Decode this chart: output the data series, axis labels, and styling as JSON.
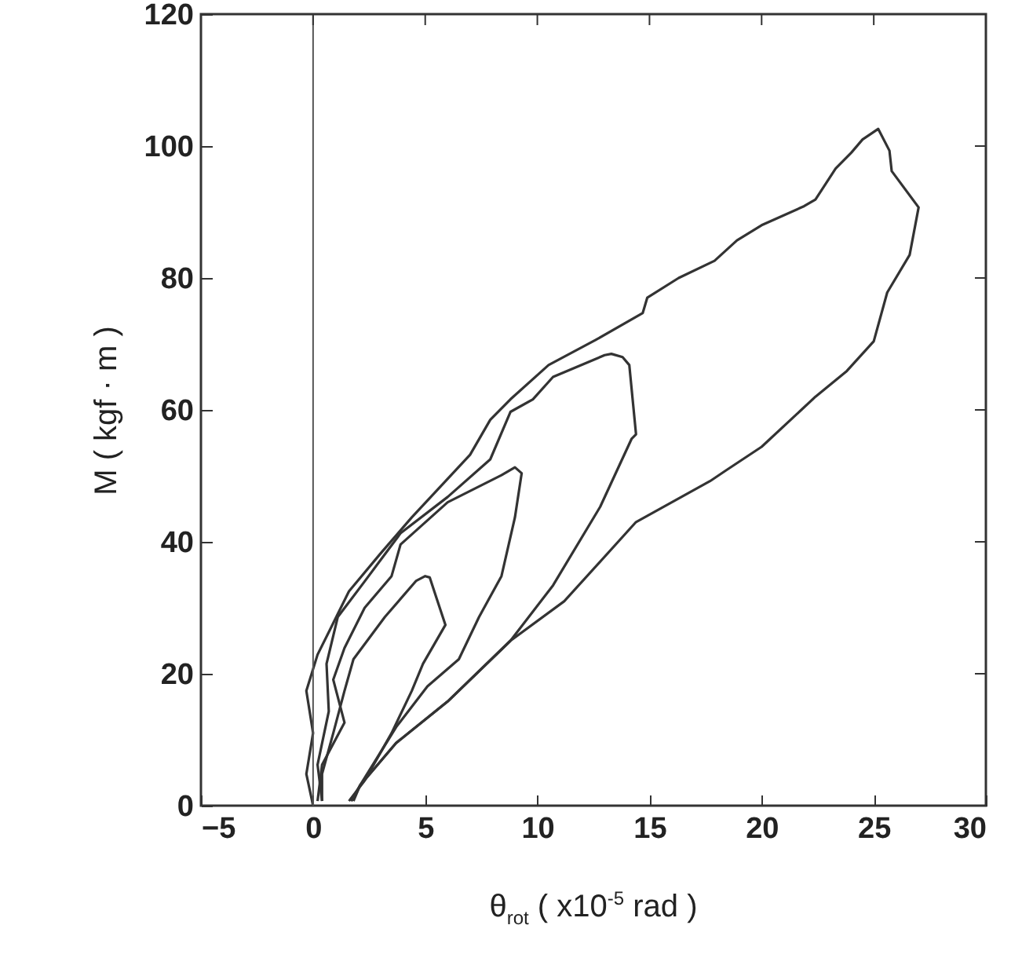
{
  "chart_data": {
    "type": "line",
    "xlabel": "θ$_{rot}$ ( x10$^{-5}$ rad )",
    "ylabel": "M ( kgf · m )",
    "xlim": [
      -5,
      30
    ],
    "ylim": [
      0,
      120
    ],
    "xticks": [
      -5,
      0,
      5,
      10,
      15,
      20,
      25,
      30
    ],
    "yticks": [
      0,
      20,
      40,
      60,
      80,
      100,
      120
    ],
    "grid": false,
    "marker": "none",
    "line_style": "solid",
    "ref_lines": [
      {
        "axis": "x",
        "value": 0,
        "color": "#555555"
      }
    ],
    "series": [
      {
        "color": "#333333",
        "x": [
          0.4,
          0.4,
          0.9,
          1.4,
          1.8,
          3.2,
          4.6,
          5,
          5.2,
          5.9,
          4.9,
          4.4,
          3.5,
          2.3,
          1.6
        ],
        "values": [
          0.7,
          4.8,
          11,
          17.4,
          22.2,
          28.6,
          34.1,
          34.8,
          34.6,
          27.4,
          21.5,
          17.4,
          11,
          3.8,
          0.7
        ]
      },
      {
        "color": "#333333",
        "x": [
          0.2,
          0.4,
          1.4,
          0.9,
          1.4,
          2.3,
          3.5,
          3.9,
          6,
          8.4,
          9,
          9.3,
          9,
          8.4,
          7.4,
          6.5,
          5.1,
          3.7,
          2.1,
          1.8
        ],
        "values": [
          0.7,
          6.2,
          12.6,
          19.1,
          23.9,
          30,
          34.8,
          39.6,
          46,
          50.1,
          51.3,
          50.4,
          43.7,
          34.8,
          28.6,
          22.2,
          18.1,
          11.9,
          3.1,
          0.7
        ]
      },
      {
        "color": "#333333",
        "x": [
          0.4,
          0.2,
          0.7,
          0.6,
          1.1,
          2.3,
          3.9,
          6,
          7.9,
          8.8,
          9.8,
          10.7,
          13,
          13.3,
          13.8,
          14.1,
          14.4,
          14.2,
          12.8,
          10.7,
          8.8,
          6,
          3.7,
          2.1,
          1.7
        ],
        "values": [
          0.7,
          6.2,
          14.3,
          21.5,
          28.6,
          34,
          41.3,
          46.8,
          52.5,
          59.7,
          61.6,
          65,
          68.3,
          68.5,
          68,
          66.8,
          56.3,
          55.6,
          45.3,
          33.4,
          25,
          15.8,
          9.5,
          3.1,
          0.7
        ]
      },
      {
        "color": "#333333",
        "x": [
          0,
          -0.3,
          0,
          -0.3,
          0.2,
          0.8,
          1.6,
          3,
          4.4,
          7,
          7.9,
          8.8,
          10.5,
          12.6,
          14.7,
          14.9,
          16.3,
          17.9,
          18.9,
          20,
          21.9,
          22.4,
          23.3,
          24,
          24.5,
          25.2,
          25.7,
          25.8,
          27,
          26.6,
          25.6,
          25,
          23.8,
          22.4,
          20,
          18.4,
          17.7,
          14.4,
          11.2,
          8.8,
          6,
          3.7,
          2.1,
          1.7
        ],
        "values": [
          0,
          4.8,
          11,
          17.4,
          22.9,
          27,
          32.5,
          38.2,
          43.7,
          53.2,
          58.5,
          61.6,
          66.8,
          70.6,
          74.7,
          77,
          80,
          82.6,
          85.7,
          88,
          90.9,
          91.9,
          96.6,
          99,
          101,
          102.6,
          99.3,
          96.2,
          90.7,
          83.5,
          77.8,
          70.4,
          65.9,
          62,
          54.4,
          50.8,
          49.2,
          43,
          31,
          25,
          15.8,
          9.5,
          3.1,
          0.7
        ]
      }
    ]
  }
}
